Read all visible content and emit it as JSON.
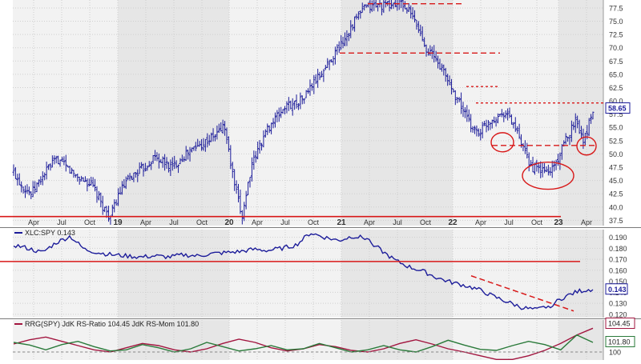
{
  "chart_data": [
    {
      "type": "ohlc",
      "panel": "price",
      "title": "",
      "last_value_label": "58.65",
      "ylim": [
        36.5,
        79
      ],
      "y_ticks": [
        "37.5",
        "40.0",
        "42.5",
        "45.0",
        "47.5",
        "50.0",
        "52.5",
        "55.0",
        "57.5",
        "60.0",
        "62.5",
        "65.0",
        "67.5",
        "70.0",
        "72.5",
        "75.0",
        "77.5"
      ],
      "x_tick_labels": [
        "Apr",
        "Jul",
        "Oct",
        "19",
        "Apr",
        "Jul",
        "Oct",
        "20",
        "Apr",
        "Jul",
        "Oct",
        "21",
        "Apr",
        "Jul",
        "Oct",
        "22",
        "Apr",
        "Jul",
        "Oct",
        "23",
        "Apr"
      ],
      "closes": [
        46.5,
        44,
        42.5,
        45,
        47.5,
        49,
        47.5,
        46,
        45,
        44,
        40.5,
        38,
        42.5,
        45,
        46.5,
        47.5,
        49.5,
        48.5,
        47.5,
        49,
        50.5,
        51.5,
        52.5,
        53.5,
        55.5,
        45.5,
        38,
        47,
        51.5,
        55,
        57,
        59,
        59.5,
        60.5,
        63,
        65,
        67.5,
        70,
        72.5,
        75.5,
        77.5,
        78,
        78,
        78,
        78.5,
        77,
        74,
        70,
        68,
        65.5,
        62,
        59,
        55.5,
        54,
        56,
        57,
        58,
        55.5,
        51,
        47.5,
        47,
        46.5,
        49,
        53,
        56.5,
        52.5,
        58.65
      ],
      "lines": [
        {
          "style": "solid",
          "color": "#d81818",
          "y": 38.2
        },
        {
          "style": "dashed",
          "color": "#d81818",
          "y": 78.3
        },
        {
          "style": "dashed",
          "color": "#d81818",
          "y": 69.0
        },
        {
          "style": "dotted",
          "color": "#d81818",
          "y": 62.7
        },
        {
          "style": "dotted",
          "color": "#d81818",
          "y": 59.6
        },
        {
          "style": "dashed",
          "color": "#d81818",
          "y": 51.6
        }
      ],
      "annotations": [
        "ellipse",
        "ellipse",
        "ellipse"
      ]
    },
    {
      "type": "line",
      "panel": "relative-strength",
      "label": "XLC:SPY 0.143",
      "last_value_label": "0.143",
      "ylim": [
        0.117,
        0.197
      ],
      "y_ticks": [
        "0.120",
        "0.130",
        "0.140",
        "0.150",
        "0.160",
        "0.170",
        "0.180",
        "0.190"
      ],
      "series": [
        {
          "values": [
            0.183,
            0.18,
            0.176,
            0.185,
            0.191,
            0.179,
            0.176,
            0.174,
            0.173,
            0.172,
            0.173,
            0.172,
            0.174,
            0.173,
            0.175,
            0.176,
            0.177,
            0.179,
            0.178,
            0.18,
            0.183,
            0.194,
            0.19,
            0.187,
            0.191,
            0.189,
            0.178,
            0.169,
            0.163,
            0.159,
            0.153,
            0.149,
            0.146,
            0.142,
            0.136,
            0.131,
            0.126,
            0.124,
            0.128,
            0.136,
            0.141,
            0.143
          ],
          "color": "#1c1c9a"
        }
      ],
      "lines": [
        {
          "style": "solid",
          "color": "#d81818",
          "y": 0.168
        },
        {
          "style": "dashed",
          "color": "#d81818",
          "from": [
            0.155
          ],
          "to": [
            0.123
          ]
        }
      ]
    },
    {
      "type": "line",
      "panel": "rrg",
      "label": "RRG(SPY) JdK RS-Ratio 104.45 JdK RS-Mom 101.80",
      "last_value_labels": [
        "104.45",
        "101.80"
      ],
      "y_ticks": [
        "100"
      ],
      "ylim": [
        98.5,
        106
      ],
      "series": [
        {
          "name": "JdK RS-Ratio",
          "color": "#a2153f",
          "values": [
            101.5,
            102.3,
            102.8,
            102,
            101.2,
            100.4,
            100,
            100.8,
            101.6,
            101.2,
            100.4,
            100,
            100.6,
            101.6,
            102.4,
            101.8,
            100.8,
            100.2,
            100.6,
            101.4,
            101,
            100.3,
            100,
            100.6,
            101.6,
            102.3,
            101.5,
            100.6,
            100,
            99.3,
            98.6,
            98.6,
            99.3,
            100.3,
            101.6,
            103.2,
            104.45
          ]
        },
        {
          "name": "JdK RS-Mom",
          "color": "#2a7a3a",
          "values": [
            101.8,
            101.3,
            100.4,
            101.4,
            102,
            101,
            100.2,
            100.4,
            101.4,
            100.8,
            100,
            100.6,
            101.8,
            101,
            100.2,
            100.6,
            101.2,
            100.4,
            100.6,
            101.6,
            100.8,
            100,
            100.4,
            101.2,
            100.4,
            100,
            101,
            102.2,
            101.3,
            100.5,
            100.3,
            101.2,
            102,
            101.4,
            100.4,
            103.2,
            101.8
          ]
        }
      ]
    }
  ]
}
